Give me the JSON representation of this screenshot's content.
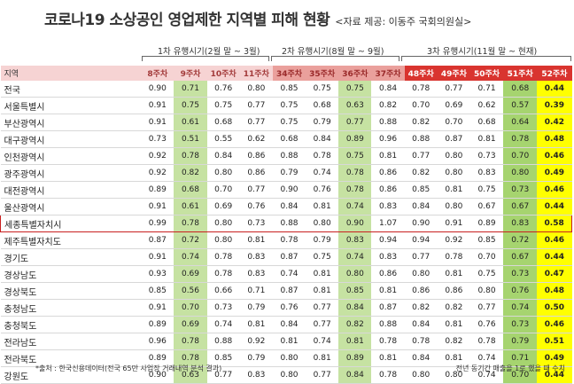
{
  "title": "코로나19 소상공인 영업제한 지역별 피해 현황",
  "source": "<자료 제공: 이동주 국회의원실>",
  "periods": [
    "1차 유행시기(2월 말 ~ 3월)",
    "2차 유행시기(8월 말 ~ 9월)",
    "3차 유행시기(11월 말 ~ 현재)"
  ],
  "region_header": "지역",
  "weeks": [
    "8주차",
    "9주차",
    "10주차",
    "11주차",
    "34주차",
    "35주차",
    "36주차",
    "37주차",
    "48주차",
    "49주차",
    "50주차",
    "51주차",
    "52주차"
  ],
  "rows": [
    {
      "region": "전국",
      "values": [
        "0.90",
        "0.71",
        "0.76",
        "0.80",
        "0.85",
        "0.75",
        "0.75",
        "0.84",
        "0.78",
        "0.77",
        "0.71",
        "0.68",
        "0.44"
      ]
    },
    {
      "region": "서울특별시",
      "values": [
        "0.91",
        "0.75",
        "0.75",
        "0.77",
        "0.75",
        "0.68",
        "0.63",
        "0.82",
        "0.70",
        "0.69",
        "0.62",
        "0.57",
        "0.39"
      ]
    },
    {
      "region": "부산광역시",
      "values": [
        "0.91",
        "0.61",
        "0.68",
        "0.77",
        "0.75",
        "0.79",
        "0.77",
        "0.88",
        "0.82",
        "0.70",
        "0.68",
        "0.64",
        "0.42"
      ]
    },
    {
      "region": "대구광역시",
      "values": [
        "0.73",
        "0.51",
        "0.55",
        "0.62",
        "0.68",
        "0.84",
        "0.89",
        "0.96",
        "0.88",
        "0.87",
        "0.81",
        "0.78",
        "0.48"
      ]
    },
    {
      "region": "인천광역시",
      "values": [
        "0.92",
        "0.78",
        "0.84",
        "0.86",
        "0.88",
        "0.78",
        "0.75",
        "0.81",
        "0.77",
        "0.80",
        "0.73",
        "0.70",
        "0.46"
      ]
    },
    {
      "region": "광주광역시",
      "values": [
        "0.92",
        "0.82",
        "0.80",
        "0.86",
        "0.79",
        "0.74",
        "0.78",
        "0.86",
        "0.82",
        "0.80",
        "0.83",
        "0.80",
        "0.49"
      ]
    },
    {
      "region": "대전광역시",
      "values": [
        "0.89",
        "0.68",
        "0.70",
        "0.77",
        "0.90",
        "0.76",
        "0.78",
        "0.86",
        "0.85",
        "0.81",
        "0.75",
        "0.73",
        "0.46"
      ]
    },
    {
      "region": "울산광역시",
      "values": [
        "0.91",
        "0.61",
        "0.69",
        "0.76",
        "0.84",
        "0.81",
        "0.74",
        "0.83",
        "0.84",
        "0.80",
        "0.67",
        "0.67",
        "0.44"
      ]
    },
    {
      "region": "세종특별자치시",
      "values": [
        "0.99",
        "0.78",
        "0.80",
        "0.73",
        "0.88",
        "0.80",
        "0.90",
        "1.07",
        "0.90",
        "0.91",
        "0.89",
        "0.83",
        "0.58"
      ]
    },
    {
      "region": "제주특별자치도",
      "values": [
        "0.87",
        "0.72",
        "0.80",
        "0.81",
        "0.78",
        "0.79",
        "0.83",
        "0.94",
        "0.94",
        "0.92",
        "0.85",
        "0.72",
        "0.46"
      ]
    },
    {
      "region": "경기도",
      "values": [
        "0.91",
        "0.74",
        "0.78",
        "0.83",
        "0.87",
        "0.75",
        "0.74",
        "0.83",
        "0.77",
        "0.78",
        "0.70",
        "0.67",
        "0.44"
      ]
    },
    {
      "region": "경상남도",
      "values": [
        "0.93",
        "0.69",
        "0.78",
        "0.83",
        "0.74",
        "0.81",
        "0.80",
        "0.86",
        "0.80",
        "0.81",
        "0.75",
        "0.73",
        "0.47"
      ]
    },
    {
      "region": "경상북도",
      "values": [
        "0.85",
        "0.56",
        "0.66",
        "0.71",
        "0.87",
        "0.81",
        "0.85",
        "0.81",
        "0.86",
        "0.86",
        "0.80",
        "0.76",
        "0.48"
      ]
    },
    {
      "region": "충청남도",
      "values": [
        "0.91",
        "0.70",
        "0.73",
        "0.79",
        "0.76",
        "0.77",
        "0.84",
        "0.87",
        "0.82",
        "0.82",
        "0.77",
        "0.74",
        "0.50"
      ]
    },
    {
      "region": "충청북도",
      "values": [
        "0.89",
        "0.69",
        "0.74",
        "0.81",
        "0.84",
        "0.77",
        "0.82",
        "0.88",
        "0.84",
        "0.81",
        "0.76",
        "0.73",
        "0.46"
      ]
    },
    {
      "region": "전라남도",
      "values": [
        "0.96",
        "0.78",
        "0.88",
        "0.92",
        "0.81",
        "0.74",
        "0.81",
        "0.78",
        "0.78",
        "0.82",
        "0.78",
        "0.79",
        "0.51"
      ]
    },
    {
      "region": "전라북도",
      "values": [
        "0.89",
        "0.78",
        "0.85",
        "0.79",
        "0.80",
        "0.81",
        "0.89",
        "0.81",
        "0.84",
        "0.81",
        "0.74",
        "0.71",
        "0.49"
      ]
    },
    {
      "region": "강원도",
      "values": [
        "0.90",
        "0.63",
        "0.77",
        "0.83",
        "0.80",
        "0.77",
        "0.84",
        "0.78",
        "0.80",
        "0.80",
        "0.74",
        "0.70",
        "0.44"
      ]
    }
  ],
  "highlight_row": "세종특별자치시",
  "footnote_left": "*출처 : 한국신용데이터(전국 65만 사업장 거래내역 분석 결과)",
  "footnote_right": "전년 동기간 매출을 1로 했을 때 수치",
  "colors": {
    "light_green": "#c6e2a2",
    "dark_green": "#a6d46f",
    "yellow": "#ffff00",
    "header_pink": "#f6d3d3",
    "header_red": "#d9342f",
    "highlight_border": "#c92020"
  }
}
